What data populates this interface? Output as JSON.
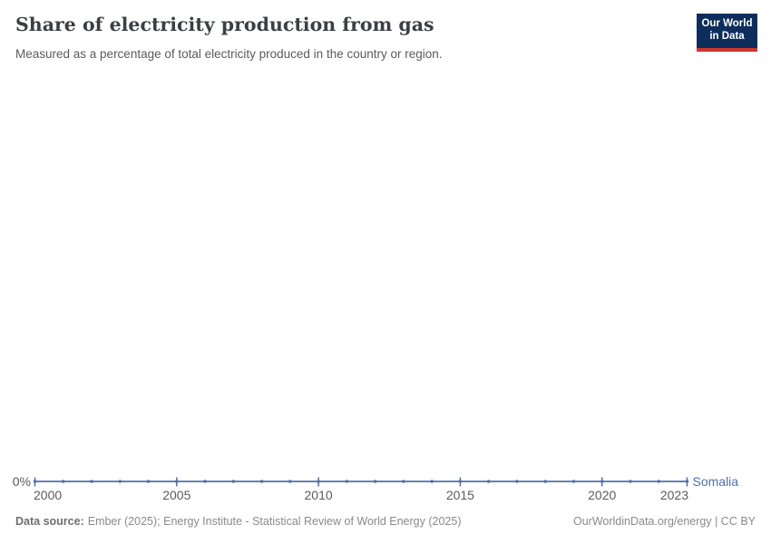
{
  "header": {
    "title": "Share of electricity production from gas",
    "subtitle": "Measured as a percentage of total electricity produced in the country or region.",
    "logo": {
      "line1": "Our World",
      "line2": "in Data"
    }
  },
  "chart_data": {
    "type": "line",
    "title": "Share of electricity production from gas",
    "x": [
      2000,
      2001,
      2002,
      2003,
      2004,
      2005,
      2006,
      2007,
      2008,
      2009,
      2010,
      2011,
      2012,
      2013,
      2014,
      2015,
      2016,
      2017,
      2018,
      2019,
      2020,
      2021,
      2022,
      2023
    ],
    "series": [
      {
        "name": "Somalia",
        "color": "#4e6fb1",
        "values": [
          0,
          0,
          0,
          0,
          0,
          0,
          0,
          0,
          0,
          0,
          0,
          0,
          0,
          0,
          0,
          0,
          0,
          0,
          0,
          0,
          0,
          0,
          0,
          0
        ]
      }
    ],
    "x_ticks": [
      2000,
      2005,
      2010,
      2015,
      2020,
      2023
    ],
    "y_ticks": [
      {
        "value": 0,
        "label": "0%"
      }
    ],
    "xlim": [
      2000,
      2023
    ],
    "unit": "%",
    "grid": false,
    "legend_position": "end-of-line"
  },
  "footer": {
    "datasource_label": "Data source:",
    "datasource_value": "Ember (2025); Energy Institute - Statistical Review of World Energy (2025)",
    "credit": "OurWorldinData.org/energy | CC BY"
  },
  "colors": {
    "line": "#4e6fb1",
    "title": "#3b3f44",
    "subtitle": "#5b5b5b",
    "tick": "#5b5b5b",
    "footer": "#8a8a8a",
    "footer_label": "#6e6e6e",
    "logo_bg": "#0d2e5c",
    "logo_red": "#d0342c"
  }
}
